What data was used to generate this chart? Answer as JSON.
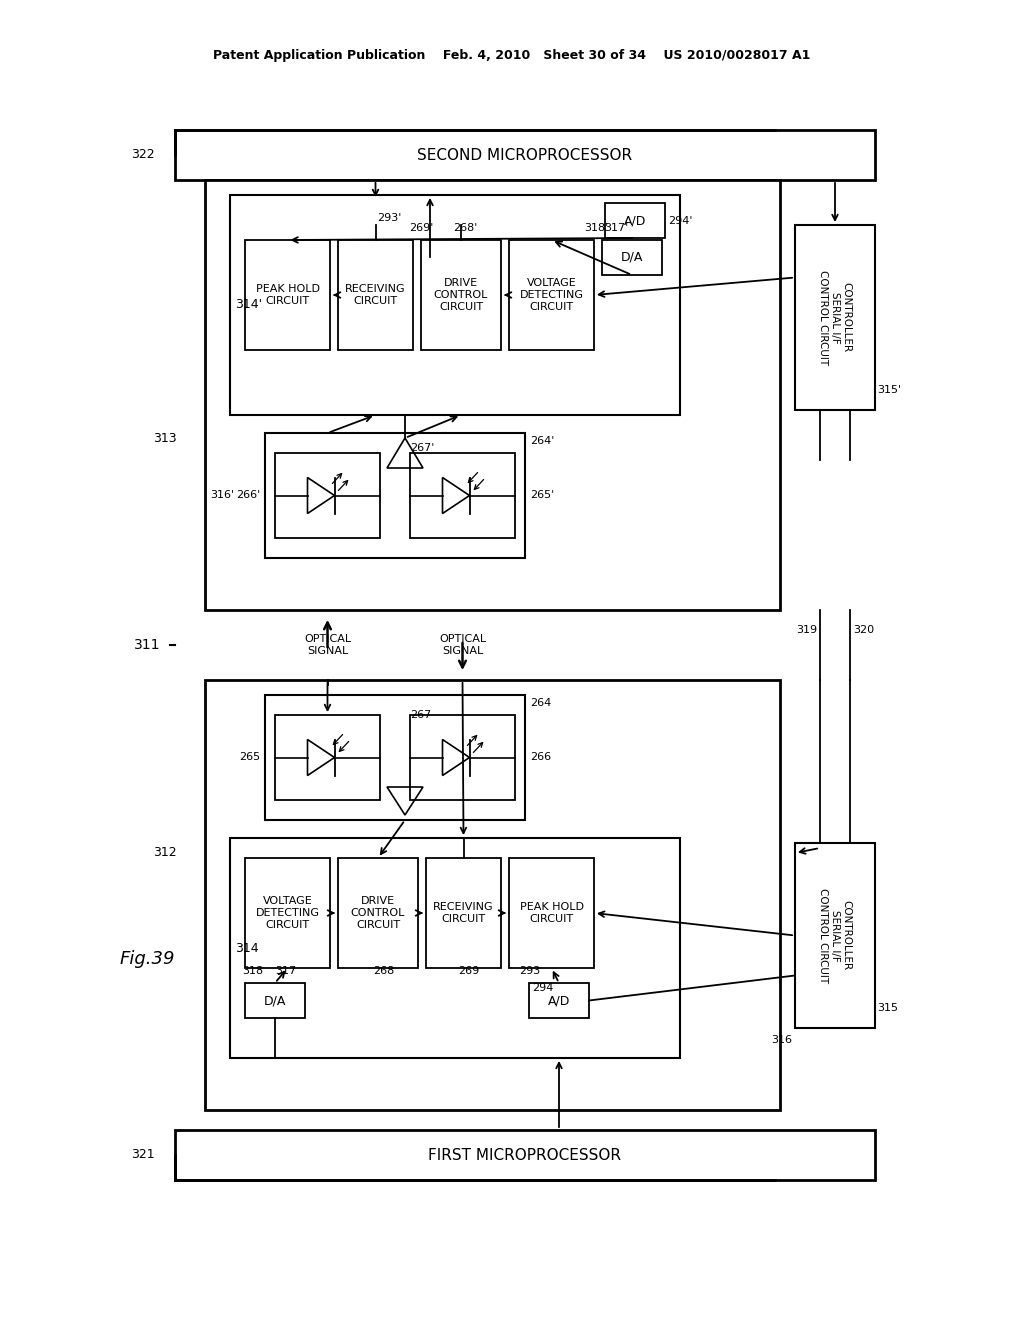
{
  "bg_color": "#ffffff",
  "header": "Patent Application Publication    Feb. 4, 2010   Sheet 30 of 34    US 2010/0028017 A1",
  "fig_label": "Fig.39",
  "title_second": "SECOND MICROPROCESSOR",
  "title_first": "FIRST MICROPROCESSOR",
  "lbl_322": "322",
  "lbl_321": "321",
  "lbl_311": "311",
  "lbl_313": "313",
  "lbl_312": "312",
  "lbl_314": "314",
  "lbl_314p": "314'",
  "lbl_315": "315",
  "lbl_315p": "315'",
  "lbl_316": "316",
  "lbl_316p": "316'",
  "lbl_317": "317",
  "lbl_317p": "317'",
  "lbl_318": "318",
  "lbl_318p": "318'",
  "lbl_319": "319",
  "lbl_320": "320",
  "lbl_264": "264",
  "lbl_264p": "264'",
  "lbl_265": "265",
  "lbl_265p": "265'",
  "lbl_266": "266",
  "lbl_266p": "266'",
  "lbl_267": "267",
  "lbl_267p": "267'",
  "lbl_268": "268",
  "lbl_268p": "268'",
  "lbl_269": "269",
  "lbl_269p": "269'",
  "lbl_293": "293",
  "lbl_293p": "293'",
  "lbl_294": "294",
  "lbl_294p": "294'"
}
